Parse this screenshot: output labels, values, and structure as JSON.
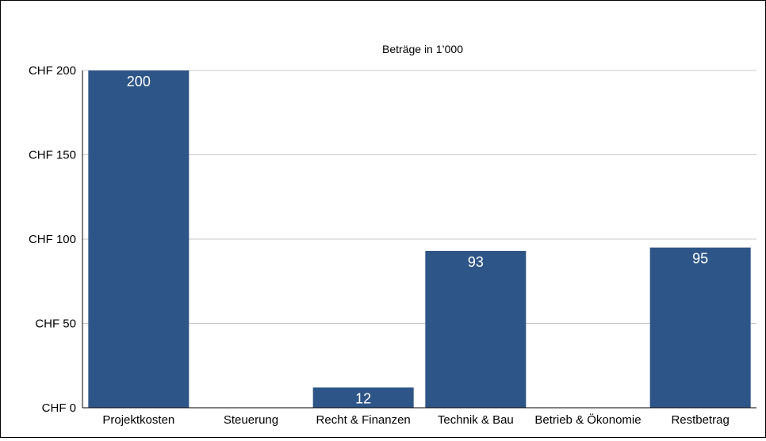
{
  "chart_data": {
    "type": "bar",
    "title": "Beträge in 1’000",
    "xlabel": "",
    "ylabel": "",
    "categories": [
      "Projektkosten",
      "Steuerung",
      "Recht & Finanzen",
      "Technik & Bau",
      "Betrieb & Ökonomie",
      "Restbetrag"
    ],
    "values": [
      200,
      0,
      12,
      93,
      0,
      95
    ],
    "data_labels": [
      "200",
      "",
      "12",
      "93",
      "",
      "95"
    ],
    "ylim": [
      0,
      200
    ],
    "yticks": [
      0,
      50,
      100,
      150,
      200
    ],
    "ytick_labels": [
      "CHF 0",
      "CHF 50",
      "CHF 100",
      "CHF 150",
      "CHF 200"
    ],
    "grid": true,
    "legend": "none",
    "colors": {
      "bar": "#2e5587",
      "grid": "#c8c8c8",
      "axis": "#000000",
      "data_label": "#ffffff"
    }
  }
}
